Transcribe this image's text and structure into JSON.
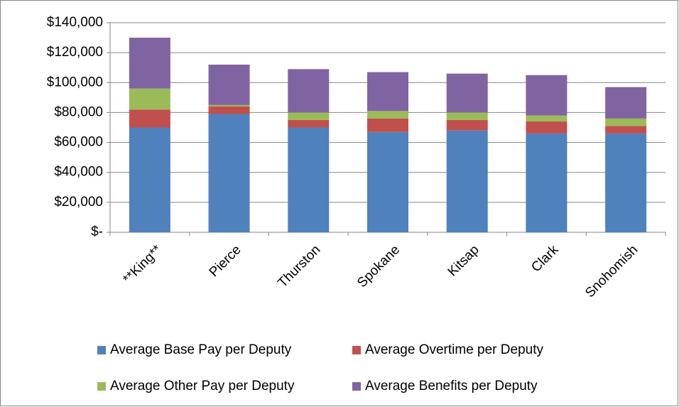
{
  "chart_data": {
    "type": "stacked_bar",
    "categories": [
      "**King**",
      "Pierce",
      "Thurston",
      "Spokane",
      "Kitsap",
      "Clark",
      "Snohomish"
    ],
    "series": [
      {
        "name": "Average Base Pay per Deputy",
        "color": "#4f81bd",
        "values": [
          70000,
          79000,
          70000,
          67000,
          68000,
          66000,
          66000
        ]
      },
      {
        "name": "Average Overtime per Deputy",
        "color": "#c0504d",
        "values": [
          12000,
          5000,
          5000,
          9000,
          7000,
          8000,
          5000
        ]
      },
      {
        "name": "Average Other Pay per Deputy",
        "color": "#9bbb59",
        "values": [
          14000,
          1000,
          5000,
          5000,
          5000,
          4000,
          5000
        ]
      },
      {
        "name": "Average Benefits per Deputy",
        "color": "#8064a2",
        "values": [
          34000,
          27000,
          29000,
          26000,
          26000,
          27000,
          21000
        ]
      }
    ],
    "ylim": [
      0,
      140000
    ],
    "yticks": [
      {
        "value": 0,
        "label": "$-"
      },
      {
        "value": 20000,
        "label": "$20,000"
      },
      {
        "value": 40000,
        "label": "$40,000"
      },
      {
        "value": 60000,
        "label": "$60,000"
      },
      {
        "value": 80000,
        "label": "$80,000"
      },
      {
        "value": 100000,
        "label": "$100,000"
      },
      {
        "value": 120000,
        "label": "$120,000"
      },
      {
        "value": 140000,
        "label": "$140,000"
      }
    ],
    "grid": true,
    "legend": "bottom"
  }
}
